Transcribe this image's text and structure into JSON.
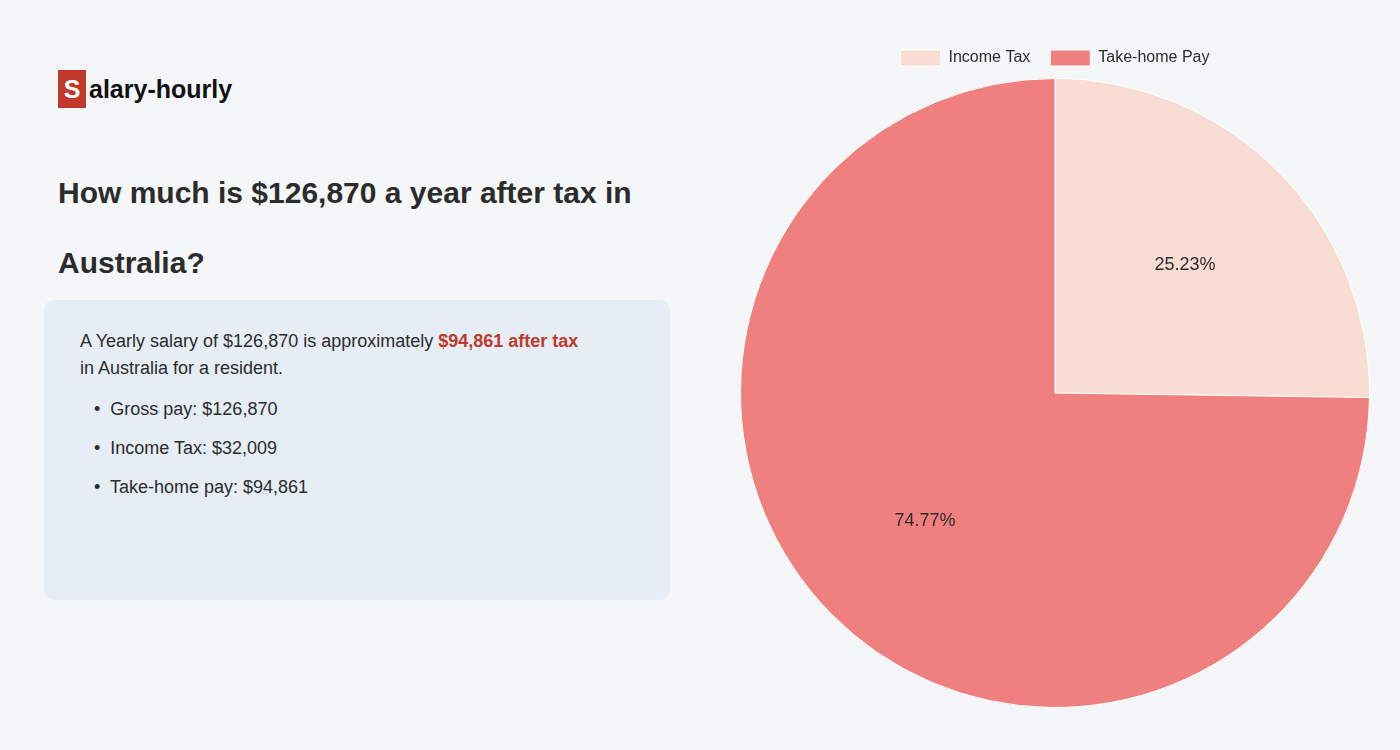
{
  "chart_data": {
    "type": "pie",
    "title": [
      "How much is $126,870 a year after tax in",
      "Australia?"
    ],
    "annotations": [
      {
        "text": "S",
        "color": "#c0392b"
      },
      {
        "text": "alary-hourly"
      },
      {
        "text": "A Yearly salary of $126,870 is approximately "
      },
      {
        "text": "$94,861 after tax",
        "color": "#c0392b"
      },
      {
        "text": "in Australia for a resident."
      },
      {
        "text": "•  Gross pay: $126,870"
      },
      {
        "text": "•  Income Tax: $32,009"
      },
      {
        "text": "•  Take-home pay: $94,861"
      }
    ],
    "categories": [
      "Income Tax",
      "Take-home Pay"
    ],
    "values": [
      25.23,
      74.77
    ],
    "value_labels": [
      "25.23%",
      "74.77%"
    ],
    "colors": [
      "#f9ddd5",
      "#f08080"
    ],
    "data_labels": true,
    "legend": "top"
  }
}
